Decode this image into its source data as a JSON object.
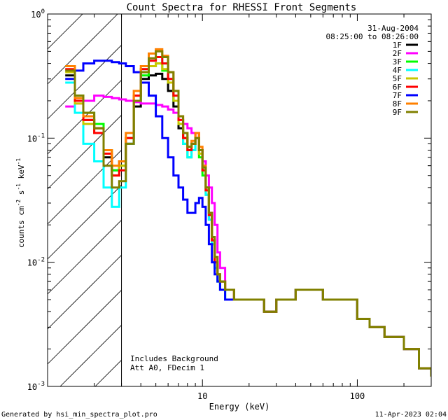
{
  "chart_data": {
    "type": "line",
    "title": "Count Spectra for RHESSI Front Segments",
    "xlabel": "Energy (keV)",
    "ylabel_parts": [
      "counts cm",
      "-2",
      " s",
      "-1",
      " keV",
      "-1"
    ],
    "xscale": "log",
    "yscale": "log",
    "xlim": [
      1.0,
      300.0
    ],
    "ylim": [
      0.001,
      1.0
    ],
    "x_ticks": [
      {
        "value": 10,
        "label": "10"
      },
      {
        "value": 100,
        "label": "100"
      }
    ],
    "y_ticks": [
      {
        "value": 1,
        "base": "10",
        "exp": "0"
      },
      {
        "value": 0.1,
        "base": "10",
        "exp": "-1"
      },
      {
        "value": 0.01,
        "base": "10",
        "exp": "-2"
      },
      {
        "value": 0.001,
        "base": "10",
        "exp": "-3"
      }
    ],
    "x_minor_ticks": [
      2,
      3,
      4,
      5,
      6,
      7,
      8,
      9,
      20,
      30,
      40,
      50,
      60,
      70,
      80,
      90,
      200,
      300
    ],
    "y_minor_ticks": [
      0.002,
      0.003,
      0.004,
      0.005,
      0.006,
      0.007,
      0.008,
      0.009,
      0.02,
      0.03,
      0.04,
      0.05,
      0.06,
      0.07,
      0.08,
      0.09,
      0.2,
      0.3,
      0.4,
      0.5,
      0.6,
      0.7,
      0.8,
      0.9
    ],
    "hatched_region_xmax": 3.0,
    "date": "31-Aug-2004",
    "time_range": "08:25:00 to 08:26:00",
    "annotations": [
      "Includes Background",
      "Att A0, FDecim 1"
    ],
    "legend_position": "top-right",
    "series": [
      {
        "name": "1F",
        "color": "#000000",
        "energies": [
          1.3,
          1.5,
          1.7,
          2.0,
          2.3,
          2.6,
          2.9,
          3.2,
          3.6,
          4.0,
          4.5,
          5.0,
          5.5,
          6.0,
          6.5,
          7.0,
          7.5,
          8.0,
          8.5,
          9.0,
          9.5,
          10.0,
          10.5,
          11.0,
          11.5,
          12.0,
          12.5,
          13.0,
          14.0,
          16.0,
          20.0,
          25.0,
          30.0,
          40.0,
          50.0,
          60.0,
          80.0,
          100.0,
          120.0,
          150.0,
          200.0,
          250.0,
          300.0
        ],
        "values": [
          0.32,
          0.2,
          0.14,
          0.12,
          0.07,
          0.055,
          0.065,
          0.09,
          0.18,
          0.3,
          0.32,
          0.33,
          0.3,
          0.24,
          0.18,
          0.12,
          0.1,
          0.085,
          0.09,
          0.1,
          0.08,
          0.065,
          0.04,
          0.025,
          0.015,
          0.01,
          0.008,
          0.007,
          0.006,
          0.005,
          0.005,
          0.004,
          0.005,
          0.006,
          0.006,
          0.005,
          0.005,
          0.0035,
          0.003,
          0.0025,
          0.002,
          0.0014,
          0.0012
        ]
      },
      {
        "name": "2F",
        "color": "#ff00ff",
        "energies": [
          1.3,
          1.5,
          1.7,
          2.0,
          2.3,
          2.6,
          2.9,
          3.2,
          3.6,
          4.0,
          4.5,
          5.0,
          5.5,
          6.0,
          6.5,
          7.0,
          7.5,
          8.0,
          8.5,
          9.0,
          9.5,
          10.0,
          10.5,
          11.0,
          11.5,
          12.0,
          12.5,
          13.0,
          14.0,
          16.0,
          20.0,
          25.0,
          30.0,
          40.0,
          50.0,
          60.0,
          80.0,
          100.0,
          120.0,
          150.0,
          200.0,
          250.0,
          300.0
        ],
        "values": [
          0.18,
          0.19,
          0.2,
          0.22,
          0.215,
          0.21,
          0.205,
          0.2,
          0.195,
          0.19,
          0.19,
          0.185,
          0.18,
          0.17,
          0.16,
          0.14,
          0.13,
          0.12,
          0.11,
          0.1,
          0.08,
          0.065,
          0.05,
          0.04,
          0.03,
          0.02,
          0.012,
          0.009,
          0.006,
          0.005,
          0.005,
          0.004,
          0.005,
          0.006,
          0.006,
          0.005,
          0.005,
          0.0035,
          0.003,
          0.0025,
          0.002,
          0.0014,
          0.0012
        ]
      },
      {
        "name": "3F",
        "color": "#00ff00",
        "energies": [
          1.3,
          1.5,
          1.7,
          2.0,
          2.3,
          2.6,
          2.9,
          3.2,
          3.6,
          4.0,
          4.5,
          5.0,
          5.5,
          6.0,
          6.5,
          7.0,
          7.5,
          8.0,
          8.5,
          9.0,
          9.5,
          10.0,
          10.5,
          11.0,
          11.5,
          12.0,
          12.5,
          13.0,
          14.0,
          16.0,
          20.0,
          25.0,
          30.0,
          40.0,
          50.0,
          60.0,
          80.0,
          100.0,
          120.0,
          150.0,
          200.0,
          250.0,
          300.0
        ],
        "values": [
          0.38,
          0.22,
          0.16,
          0.13,
          0.08,
          0.055,
          0.06,
          0.1,
          0.2,
          0.32,
          0.38,
          0.4,
          0.35,
          0.28,
          0.2,
          0.13,
          0.09,
          0.07,
          0.08,
          0.1,
          0.07,
          0.05,
          0.035,
          0.022,
          0.014,
          0.009,
          0.007,
          0.006,
          0.005,
          0.005,
          0.005,
          0.004,
          0.005,
          0.006,
          0.006,
          0.005,
          0.005,
          0.0035,
          0.003,
          0.0025,
          0.002,
          0.0014,
          0.0012
        ]
      },
      {
        "name": "4F",
        "color": "#00ffff",
        "energies": [
          1.3,
          1.5,
          1.7,
          2.0,
          2.3,
          2.6,
          2.9,
          3.2,
          3.6,
          4.0,
          4.5,
          5.0,
          5.5,
          6.0,
          6.5,
          7.0,
          7.5,
          8.0,
          8.5,
          9.0,
          9.5,
          10.0,
          10.5,
          11.0,
          11.5,
          12.0,
          12.5,
          13.0,
          14.0,
          16.0,
          20.0,
          25.0,
          30.0,
          40.0,
          50.0,
          60.0,
          80.0,
          100.0,
          120.0,
          150.0,
          200.0,
          250.0,
          300.0
        ],
        "values": [
          0.28,
          0.16,
          0.09,
          0.065,
          0.04,
          0.028,
          0.04,
          0.09,
          0.2,
          0.36,
          0.42,
          0.45,
          0.4,
          0.3,
          0.2,
          0.13,
          0.09,
          0.07,
          0.08,
          0.1,
          0.075,
          0.055,
          0.035,
          0.022,
          0.014,
          0.009,
          0.007,
          0.006,
          0.005,
          0.005,
          0.005,
          0.004,
          0.005,
          0.006,
          0.006,
          0.005,
          0.005,
          0.0035,
          0.003,
          0.0025,
          0.002,
          0.0014,
          0.0012
        ]
      },
      {
        "name": "5F",
        "color": "#c8c800",
        "energies": [
          1.3,
          1.5,
          1.7,
          2.0,
          2.3,
          2.6,
          2.9,
          3.2,
          3.6,
          4.0,
          4.5,
          5.0,
          5.5,
          6.0,
          6.5,
          7.0,
          7.5,
          8.0,
          8.5,
          9.0,
          9.5,
          10.0,
          10.5,
          11.0,
          11.5,
          12.0,
          12.5,
          13.0,
          14.0,
          16.0,
          20.0,
          25.0,
          30.0,
          40.0,
          50.0,
          60.0,
          80.0,
          100.0,
          120.0,
          150.0,
          200.0,
          250.0,
          300.0
        ],
        "values": [
          0.34,
          0.19,
          0.13,
          0.11,
          0.075,
          0.05,
          0.06,
          0.1,
          0.22,
          0.34,
          0.38,
          0.4,
          0.36,
          0.28,
          0.2,
          0.13,
          0.1,
          0.08,
          0.09,
          0.1,
          0.075,
          0.055,
          0.038,
          0.024,
          0.015,
          0.01,
          0.008,
          0.007,
          0.006,
          0.005,
          0.005,
          0.004,
          0.005,
          0.006,
          0.006,
          0.005,
          0.005,
          0.0035,
          0.003,
          0.0025,
          0.002,
          0.0014,
          0.0012
        ]
      },
      {
        "name": "6F",
        "color": "#ff0000",
        "energies": [
          1.3,
          1.5,
          1.7,
          2.0,
          2.3,
          2.6,
          2.9,
          3.2,
          3.6,
          4.0,
          4.5,
          5.0,
          5.5,
          6.0,
          6.5,
          7.0,
          7.5,
          8.0,
          8.5,
          9.0,
          9.5,
          10.0,
          10.5,
          11.0,
          11.5,
          12.0,
          12.5,
          13.0,
          14.0,
          16.0,
          20.0,
          25.0,
          30.0,
          40.0,
          50.0,
          60.0,
          80.0,
          100.0,
          120.0,
          150.0,
          200.0,
          250.0,
          300.0
        ],
        "values": [
          0.36,
          0.2,
          0.14,
          0.11,
          0.075,
          0.05,
          0.055,
          0.1,
          0.22,
          0.36,
          0.42,
          0.45,
          0.4,
          0.3,
          0.22,
          0.14,
          0.1,
          0.08,
          0.09,
          0.11,
          0.08,
          0.055,
          0.038,
          0.024,
          0.015,
          0.01,
          0.008,
          0.007,
          0.006,
          0.005,
          0.005,
          0.004,
          0.005,
          0.006,
          0.006,
          0.005,
          0.005,
          0.0035,
          0.003,
          0.0025,
          0.002,
          0.0014,
          0.0012
        ]
      },
      {
        "name": "7F",
        "color": "#0000ff",
        "energies": [
          1.3,
          1.5,
          1.7,
          2.0,
          2.3,
          2.6,
          2.9,
          3.2,
          3.6,
          4.0,
          4.5,
          5.0,
          5.5,
          6.0,
          6.5,
          7.0,
          7.5,
          8.0,
          8.5,
          9.0,
          9.5,
          10.0,
          10.5,
          11.0,
          11.5,
          12.0,
          12.5,
          13.0,
          14.0,
          16.0,
          20.0,
          25.0,
          30.0,
          40.0,
          50.0,
          60.0,
          80.0,
          100.0,
          120.0,
          150.0,
          200.0,
          250.0,
          300.0
        ],
        "values": [
          0.3,
          0.35,
          0.4,
          0.42,
          0.42,
          0.41,
          0.4,
          0.38,
          0.34,
          0.28,
          0.22,
          0.15,
          0.1,
          0.07,
          0.05,
          0.04,
          0.032,
          0.025,
          0.025,
          0.03,
          0.033,
          0.028,
          0.02,
          0.014,
          0.01,
          0.008,
          0.007,
          0.006,
          0.005,
          0.005,
          0.005,
          0.004,
          0.005,
          0.006,
          0.006,
          0.005,
          0.005,
          0.0035,
          0.003,
          0.0025,
          0.002,
          0.0014,
          0.0012
        ]
      },
      {
        "name": "8F",
        "color": "#ff8000",
        "energies": [
          1.3,
          1.5,
          1.7,
          2.0,
          2.3,
          2.6,
          2.9,
          3.2,
          3.6,
          4.0,
          4.5,
          5.0,
          5.5,
          6.0,
          6.5,
          7.0,
          7.5,
          8.0,
          8.5,
          9.0,
          9.5,
          10.0,
          10.5,
          11.0,
          11.5,
          12.0,
          12.5,
          13.0,
          14.0,
          16.0,
          20.0,
          25.0,
          30.0,
          40.0,
          50.0,
          60.0,
          80.0,
          100.0,
          120.0,
          150.0,
          200.0,
          250.0,
          300.0
        ],
        "values": [
          0.38,
          0.21,
          0.15,
          0.12,
          0.08,
          0.06,
          0.065,
          0.11,
          0.24,
          0.38,
          0.48,
          0.52,
          0.46,
          0.34,
          0.24,
          0.15,
          0.11,
          0.085,
          0.095,
          0.11,
          0.085,
          0.06,
          0.04,
          0.025,
          0.016,
          0.011,
          0.008,
          0.007,
          0.006,
          0.005,
          0.005,
          0.004,
          0.005,
          0.006,
          0.006,
          0.005,
          0.005,
          0.0035,
          0.003,
          0.0025,
          0.002,
          0.0014,
          0.0012
        ]
      },
      {
        "name": "9F",
        "color": "#808000",
        "energies": [
          1.3,
          1.5,
          1.7,
          2.0,
          2.3,
          2.6,
          2.9,
          3.2,
          3.6,
          4.0,
          4.5,
          5.0,
          5.5,
          6.0,
          6.5,
          7.0,
          7.5,
          8.0,
          8.5,
          9.0,
          9.5,
          10.0,
          10.5,
          11.0,
          11.5,
          12.0,
          12.5,
          13.0,
          14.0,
          16.0,
          20.0,
          25.0,
          30.0,
          40.0,
          50.0,
          60.0,
          80.0,
          100.0,
          120.0,
          150.0,
          200.0,
          250.0,
          300.0
        ],
        "values": [
          0.35,
          0.22,
          0.16,
          0.12,
          0.06,
          0.04,
          0.045,
          0.09,
          0.2,
          0.34,
          0.44,
          0.5,
          0.45,
          0.34,
          0.24,
          0.15,
          0.11,
          0.085,
          0.09,
          0.1,
          0.08,
          0.058,
          0.04,
          0.025,
          0.016,
          0.011,
          0.008,
          0.007,
          0.006,
          0.005,
          0.005,
          0.004,
          0.005,
          0.006,
          0.006,
          0.005,
          0.005,
          0.0035,
          0.003,
          0.0025,
          0.002,
          0.0014,
          0.0012
        ]
      }
    ]
  },
  "footer": {
    "generated_by": "Generated by hsi_min_spectra_plot.pro",
    "timestamp": "11-Apr-2023 02:04"
  }
}
